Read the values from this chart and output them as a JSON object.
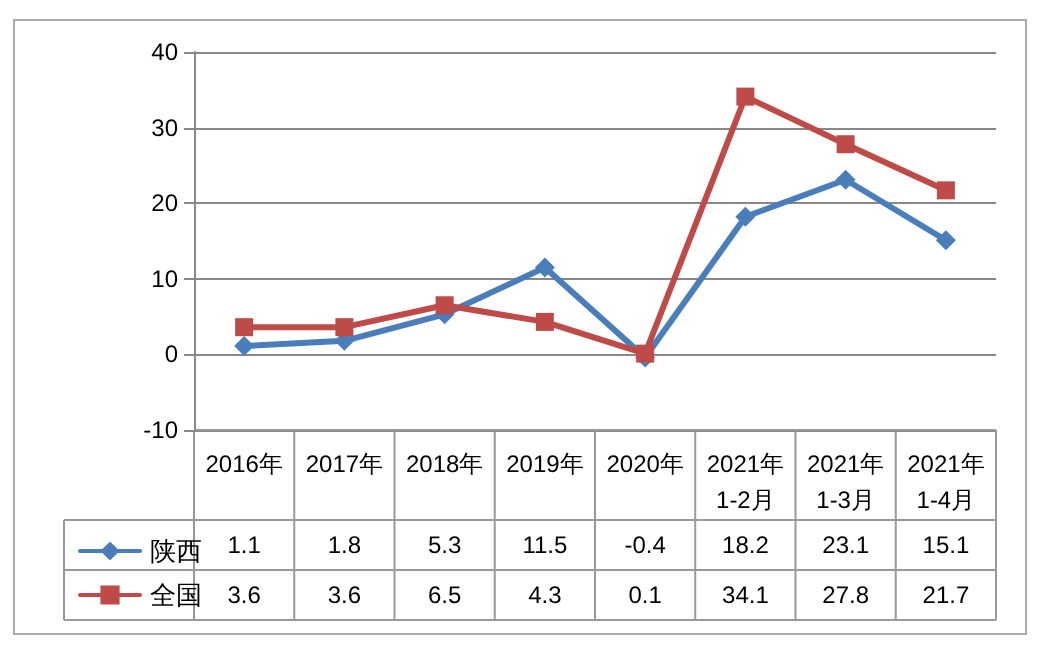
{
  "chart_data": {
    "type": "line",
    "categories": [
      "2016年",
      "2017年",
      "2018年",
      "2019年",
      "2020年",
      "2021年1-2月",
      "2021年1-3月",
      "2021年1-4月"
    ],
    "series": [
      {
        "name": "陕西",
        "color": "#4a7ebb",
        "marker": "diamond",
        "values": [
          1.1,
          1.8,
          5.3,
          11.5,
          -0.4,
          18.2,
          23.1,
          15.1
        ]
      },
      {
        "name": "全国",
        "color": "#be4b48",
        "marker": "square",
        "values": [
          3.6,
          3.6,
          6.5,
          4.3,
          0.1,
          34.1,
          27.8,
          21.7
        ]
      }
    ],
    "ylim": [
      -10,
      40
    ],
    "yticks": [
      -10,
      0,
      10,
      20,
      30,
      40
    ],
    "grid": "y",
    "legend": "bottom left",
    "data_labels": true,
    "line_style": "solid"
  }
}
